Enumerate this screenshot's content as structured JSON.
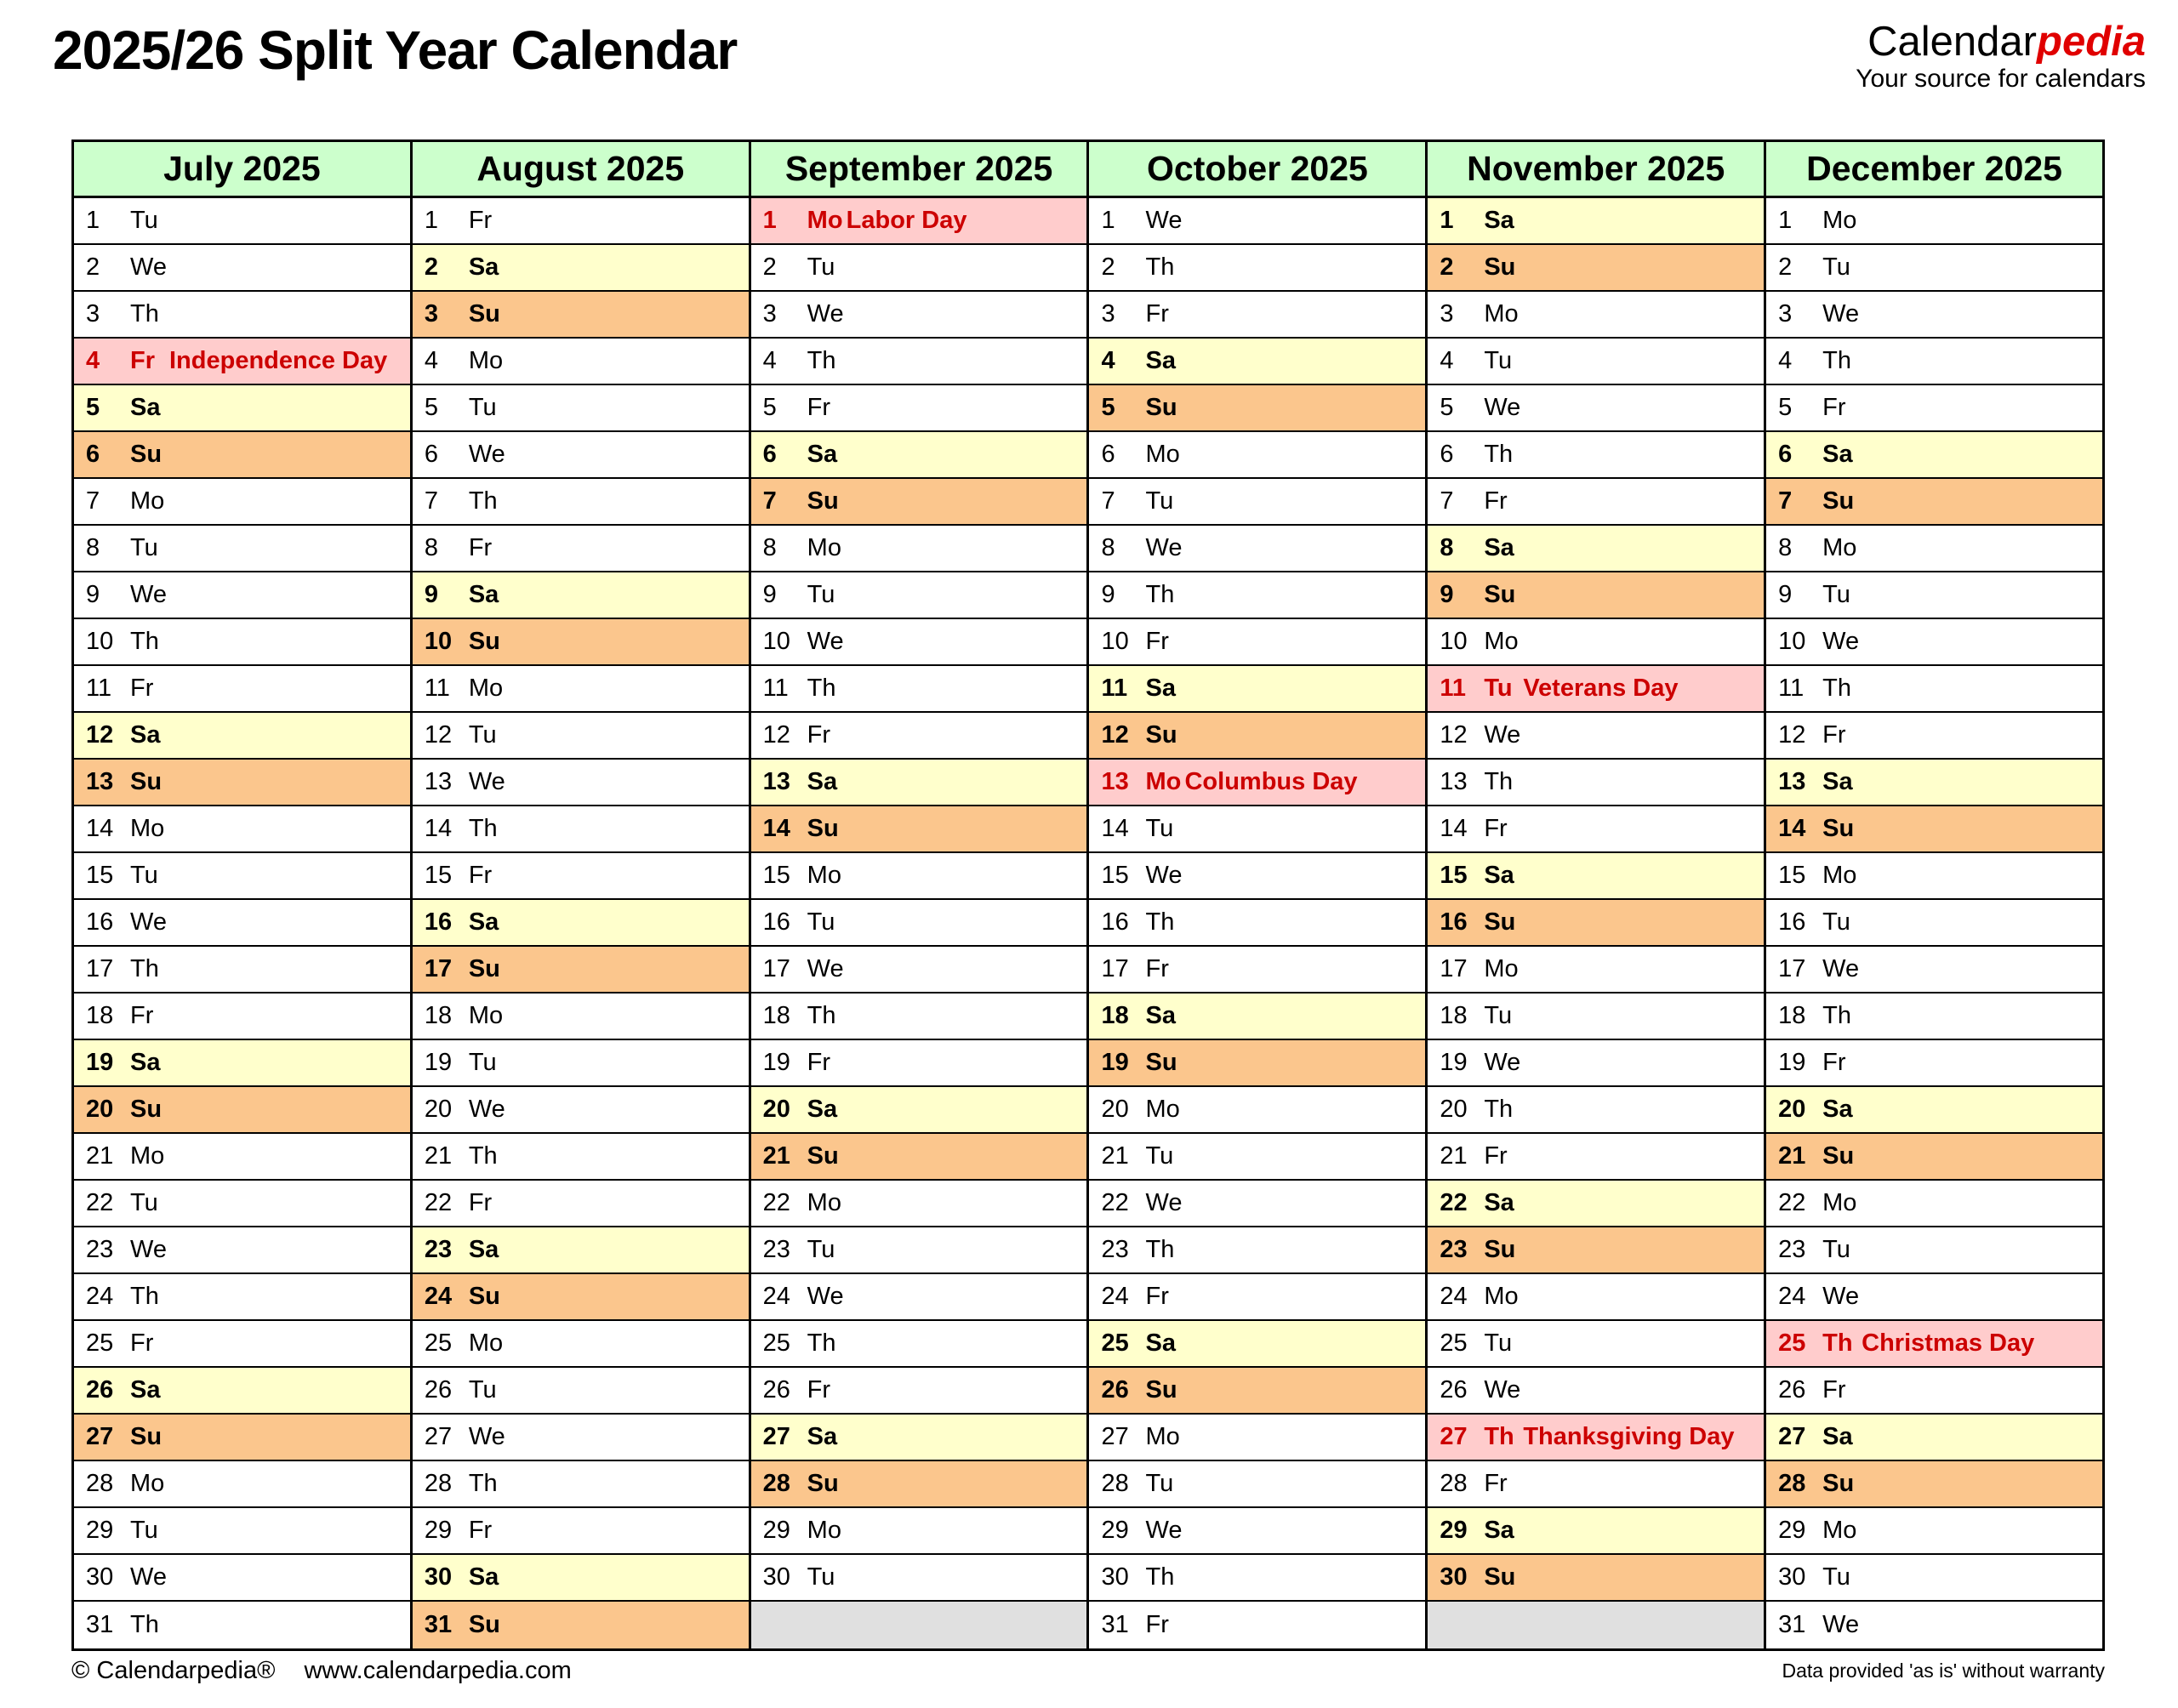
{
  "title": "2025/26 Split Year Calendar",
  "logo": {
    "brand_black": "Calendar",
    "brand_red": "pedia",
    "tagline": "Your source for calendars"
  },
  "footer": {
    "copyright": "© Calendarpedia®",
    "url": "www.calendarpedia.com",
    "disclaimer": "Data provided 'as is' without warranty"
  },
  "colors": {
    "header_green": "#ccffcc",
    "saturday_yellow": "#ffffcc",
    "sunday_orange": "#fbc68d",
    "holiday_pink": "#ffcccc",
    "holiday_red": "#cc0000",
    "empty_gray": "#e0e0e0",
    "logo_red": "#e00000",
    "border_black": "#000000"
  },
  "calendar": {
    "months": [
      {
        "name": "July 2025",
        "holidays": {
          "4": "Independence Day"
        },
        "days": [
          [
            1,
            "Tu"
          ],
          [
            2,
            "We"
          ],
          [
            3,
            "Th"
          ],
          [
            4,
            "Fr"
          ],
          [
            5,
            "Sa"
          ],
          [
            6,
            "Su"
          ],
          [
            7,
            "Mo"
          ],
          [
            8,
            "Tu"
          ],
          [
            9,
            "We"
          ],
          [
            10,
            "Th"
          ],
          [
            11,
            "Fr"
          ],
          [
            12,
            "Sa"
          ],
          [
            13,
            "Su"
          ],
          [
            14,
            "Mo"
          ],
          [
            15,
            "Tu"
          ],
          [
            16,
            "We"
          ],
          [
            17,
            "Th"
          ],
          [
            18,
            "Fr"
          ],
          [
            19,
            "Sa"
          ],
          [
            20,
            "Su"
          ],
          [
            21,
            "Mo"
          ],
          [
            22,
            "Tu"
          ],
          [
            23,
            "We"
          ],
          [
            24,
            "Th"
          ],
          [
            25,
            "Fr"
          ],
          [
            26,
            "Sa"
          ],
          [
            27,
            "Su"
          ],
          [
            28,
            "Mo"
          ],
          [
            29,
            "Tu"
          ],
          [
            30,
            "We"
          ],
          [
            31,
            "Th"
          ]
        ]
      },
      {
        "name": "August 2025",
        "holidays": {},
        "days": [
          [
            1,
            "Fr"
          ],
          [
            2,
            "Sa"
          ],
          [
            3,
            "Su"
          ],
          [
            4,
            "Mo"
          ],
          [
            5,
            "Tu"
          ],
          [
            6,
            "We"
          ],
          [
            7,
            "Th"
          ],
          [
            8,
            "Fr"
          ],
          [
            9,
            "Sa"
          ],
          [
            10,
            "Su"
          ],
          [
            11,
            "Mo"
          ],
          [
            12,
            "Tu"
          ],
          [
            13,
            "We"
          ],
          [
            14,
            "Th"
          ],
          [
            15,
            "Fr"
          ],
          [
            16,
            "Sa"
          ],
          [
            17,
            "Su"
          ],
          [
            18,
            "Mo"
          ],
          [
            19,
            "Tu"
          ],
          [
            20,
            "We"
          ],
          [
            21,
            "Th"
          ],
          [
            22,
            "Fr"
          ],
          [
            23,
            "Sa"
          ],
          [
            24,
            "Su"
          ],
          [
            25,
            "Mo"
          ],
          [
            26,
            "Tu"
          ],
          [
            27,
            "We"
          ],
          [
            28,
            "Th"
          ],
          [
            29,
            "Fr"
          ],
          [
            30,
            "Sa"
          ],
          [
            31,
            "Su"
          ]
        ]
      },
      {
        "name": "September 2025",
        "holidays": {
          "1": "Labor Day"
        },
        "days": [
          [
            1,
            "Mo"
          ],
          [
            2,
            "Tu"
          ],
          [
            3,
            "We"
          ],
          [
            4,
            "Th"
          ],
          [
            5,
            "Fr"
          ],
          [
            6,
            "Sa"
          ],
          [
            7,
            "Su"
          ],
          [
            8,
            "Mo"
          ],
          [
            9,
            "Tu"
          ],
          [
            10,
            "We"
          ],
          [
            11,
            "Th"
          ],
          [
            12,
            "Fr"
          ],
          [
            13,
            "Sa"
          ],
          [
            14,
            "Su"
          ],
          [
            15,
            "Mo"
          ],
          [
            16,
            "Tu"
          ],
          [
            17,
            "We"
          ],
          [
            18,
            "Th"
          ],
          [
            19,
            "Fr"
          ],
          [
            20,
            "Sa"
          ],
          [
            21,
            "Su"
          ],
          [
            22,
            "Mo"
          ],
          [
            23,
            "Tu"
          ],
          [
            24,
            "We"
          ],
          [
            25,
            "Th"
          ],
          [
            26,
            "Fr"
          ],
          [
            27,
            "Sa"
          ],
          [
            28,
            "Su"
          ],
          [
            29,
            "Mo"
          ],
          [
            30,
            "Tu"
          ],
          null
        ]
      },
      {
        "name": "October 2025",
        "holidays": {
          "13": "Columbus Day"
        },
        "days": [
          [
            1,
            "We"
          ],
          [
            2,
            "Th"
          ],
          [
            3,
            "Fr"
          ],
          [
            4,
            "Sa"
          ],
          [
            5,
            "Su"
          ],
          [
            6,
            "Mo"
          ],
          [
            7,
            "Tu"
          ],
          [
            8,
            "We"
          ],
          [
            9,
            "Th"
          ],
          [
            10,
            "Fr"
          ],
          [
            11,
            "Sa"
          ],
          [
            12,
            "Su"
          ],
          [
            13,
            "Mo"
          ],
          [
            14,
            "Tu"
          ],
          [
            15,
            "We"
          ],
          [
            16,
            "Th"
          ],
          [
            17,
            "Fr"
          ],
          [
            18,
            "Sa"
          ],
          [
            19,
            "Su"
          ],
          [
            20,
            "Mo"
          ],
          [
            21,
            "Tu"
          ],
          [
            22,
            "We"
          ],
          [
            23,
            "Th"
          ],
          [
            24,
            "Fr"
          ],
          [
            25,
            "Sa"
          ],
          [
            26,
            "Su"
          ],
          [
            27,
            "Mo"
          ],
          [
            28,
            "Tu"
          ],
          [
            29,
            "We"
          ],
          [
            30,
            "Th"
          ],
          [
            31,
            "Fr"
          ]
        ]
      },
      {
        "name": "November 2025",
        "holidays": {
          "11": "Veterans Day",
          "27": "Thanksgiving Day"
        },
        "days": [
          [
            1,
            "Sa"
          ],
          [
            2,
            "Su"
          ],
          [
            3,
            "Mo"
          ],
          [
            4,
            "Tu"
          ],
          [
            5,
            "We"
          ],
          [
            6,
            "Th"
          ],
          [
            7,
            "Fr"
          ],
          [
            8,
            "Sa"
          ],
          [
            9,
            "Su"
          ],
          [
            10,
            "Mo"
          ],
          [
            11,
            "Tu"
          ],
          [
            12,
            "We"
          ],
          [
            13,
            "Th"
          ],
          [
            14,
            "Fr"
          ],
          [
            15,
            "Sa"
          ],
          [
            16,
            "Su"
          ],
          [
            17,
            "Mo"
          ],
          [
            18,
            "Tu"
          ],
          [
            19,
            "We"
          ],
          [
            20,
            "Th"
          ],
          [
            21,
            "Fr"
          ],
          [
            22,
            "Sa"
          ],
          [
            23,
            "Su"
          ],
          [
            24,
            "Mo"
          ],
          [
            25,
            "Tu"
          ],
          [
            26,
            "We"
          ],
          [
            27,
            "Th"
          ],
          [
            28,
            "Fr"
          ],
          [
            29,
            "Sa"
          ],
          [
            30,
            "Su"
          ],
          null
        ]
      },
      {
        "name": "December 2025",
        "holidays": {
          "25": "Christmas Day"
        },
        "days": [
          [
            1,
            "Mo"
          ],
          [
            2,
            "Tu"
          ],
          [
            3,
            "We"
          ],
          [
            4,
            "Th"
          ],
          [
            5,
            "Fr"
          ],
          [
            6,
            "Sa"
          ],
          [
            7,
            "Su"
          ],
          [
            8,
            "Mo"
          ],
          [
            9,
            "Tu"
          ],
          [
            10,
            "We"
          ],
          [
            11,
            "Th"
          ],
          [
            12,
            "Fr"
          ],
          [
            13,
            "Sa"
          ],
          [
            14,
            "Su"
          ],
          [
            15,
            "Mo"
          ],
          [
            16,
            "Tu"
          ],
          [
            17,
            "We"
          ],
          [
            18,
            "Th"
          ],
          [
            19,
            "Fr"
          ],
          [
            20,
            "Sa"
          ],
          [
            21,
            "Su"
          ],
          [
            22,
            "Mo"
          ],
          [
            23,
            "Tu"
          ],
          [
            24,
            "We"
          ],
          [
            25,
            "Th"
          ],
          [
            26,
            "Fr"
          ],
          [
            27,
            "Sa"
          ],
          [
            28,
            "Su"
          ],
          [
            29,
            "Mo"
          ],
          [
            30,
            "Tu"
          ],
          [
            31,
            "We"
          ]
        ]
      }
    ]
  }
}
